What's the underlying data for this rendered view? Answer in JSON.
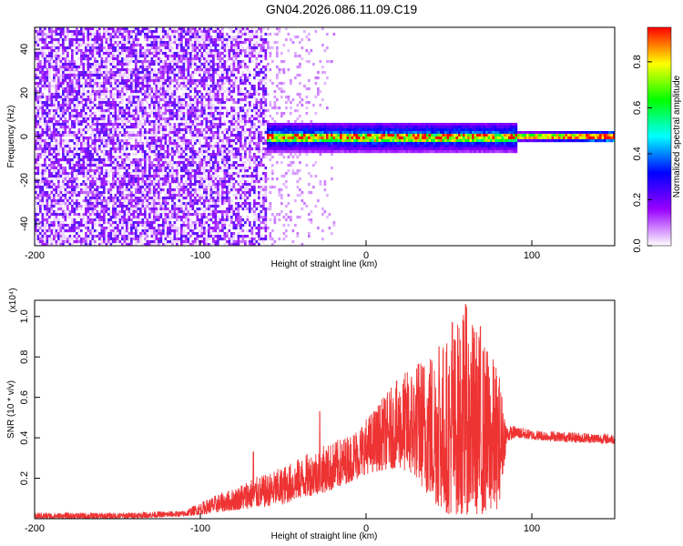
{
  "title": "GN04.2026.086.11.09.C19",
  "chart_data": [
    {
      "type": "heatmap",
      "name": "spectrogram",
      "xlabel": "Height of straight line (km)",
      "ylabel": "Frequency (Hz)",
      "xlim": [
        -200,
        150
      ],
      "ylim": [
        -50,
        50
      ],
      "xticks": [
        -200,
        -100,
        0,
        100
      ],
      "yticks": [
        -40,
        -20,
        0,
        20,
        40
      ],
      "colorbar": {
        "label": "Normalized spectral amplitude",
        "range": [
          0,
          0.95
        ],
        "ticks": [
          "0.0",
          "0.2",
          "0.4",
          "0.6",
          "0.8"
        ],
        "tick_values": [
          0,
          0.2,
          0.4,
          0.6,
          0.8
        ],
        "colormap": [
          "#ffffff",
          "#9900ff",
          "#0000ff",
          "#00ffff",
          "#00ff00",
          "#ffff00",
          "#ff0000"
        ]
      },
      "regions": [
        {
          "x_range": [
            -200,
            -60
          ],
          "freq_range": [
            -50,
            50
          ],
          "amplitude": 0.15,
          "description_level": "noise"
        },
        {
          "x_range": [
            -60,
            90
          ],
          "freq_range": [
            -6,
            6
          ],
          "amplitude": 0.3
        },
        {
          "x_range": [
            -60,
            90
          ],
          "freq_range": [
            -2,
            2
          ],
          "amplitude": 0.55
        },
        {
          "x_range": [
            90,
            150
          ],
          "freq_range": [
            -1,
            1
          ],
          "amplitude": 0.9
        }
      ]
    },
    {
      "type": "line",
      "name": "snr",
      "xlabel": "Height of straight line (km)",
      "ylabel": "SNR (10 * v/v)",
      "y_multiplier": "(x10⁴)",
      "xlim": [
        -200,
        150
      ],
      "ylim": [
        0,
        1.08
      ],
      "xticks": [
        -200,
        -100,
        0,
        100
      ],
      "yticks": [
        0.2,
        0.4,
        0.6,
        0.8,
        1.0
      ],
      "color": "#ee3333",
      "envelope": {
        "x": [
          -200,
          -150,
          -110,
          -100,
          -90,
          -80,
          -70,
          -60,
          -50,
          -40,
          -30,
          -20,
          -10,
          0,
          10,
          20,
          30,
          40,
          50,
          60,
          70,
          80,
          85,
          90,
          100,
          120,
          150
        ],
        "low": [
          0.0,
          0.0,
          0.01,
          0.02,
          0.03,
          0.04,
          0.05,
          0.06,
          0.07,
          0.1,
          0.12,
          0.14,
          0.18,
          0.22,
          0.24,
          0.25,
          0.2,
          0.08,
          0.02,
          0.02,
          0.02,
          0.05,
          0.38,
          0.4,
          0.39,
          0.38,
          0.37
        ],
        "high": [
          0.03,
          0.03,
          0.04,
          0.08,
          0.12,
          0.15,
          0.2,
          0.22,
          0.26,
          0.3,
          0.35,
          0.38,
          0.42,
          0.5,
          0.6,
          0.7,
          0.78,
          0.86,
          0.9,
          1.06,
          0.9,
          0.75,
          0.46,
          0.46,
          0.44,
          0.43,
          0.42
        ],
        "spikes": [
          {
            "x": -68,
            "y": 0.33
          },
          {
            "x": -28,
            "y": 0.53
          },
          {
            "x": 10,
            "y": 0.54
          },
          {
            "x": 38,
            "y": 0.68
          },
          {
            "x": 44,
            "y": 0.85
          },
          {
            "x": 52,
            "y": 0.97
          },
          {
            "x": 60,
            "y": 1.06
          },
          {
            "x": 69,
            "y": 0.95
          }
        ]
      }
    }
  ]
}
